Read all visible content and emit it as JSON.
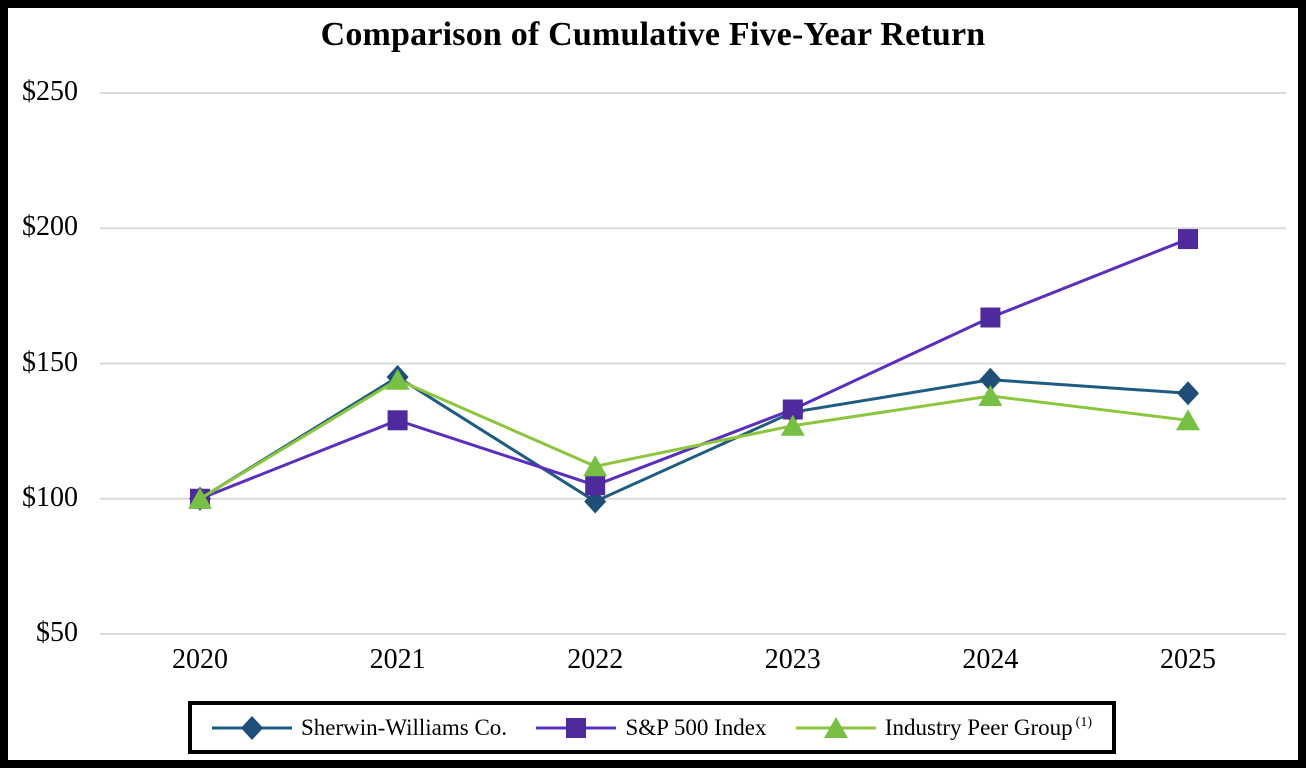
{
  "figure": {
    "kind": "performance-graph"
  },
  "chart_data": {
    "type": "line",
    "title": "Comparison of Cumulative Five-Year Return",
    "categories": [
      "2020",
      "2021",
      "2022",
      "2023",
      "2024",
      "2025"
    ],
    "y_ticks": [
      {
        "label": "$250",
        "value": 250
      },
      {
        "label": "$200",
        "value": 200
      },
      {
        "label": "$150",
        "value": 150
      },
      {
        "label": "$100",
        "value": 100
      },
      {
        "label": "$50",
        "value": 50
      }
    ],
    "ylim": [
      50,
      250
    ],
    "grid": "horizontal",
    "gridline_color": "#DBDBDB",
    "legend_position": "bottom-boxed",
    "series": [
      {
        "name": "Sherwin-Williams Co.",
        "superscript": "",
        "marker": "diamond",
        "line_color": "#1E5C83",
        "marker_color": "#1F4E79",
        "values": [
          100,
          145,
          99,
          132,
          144,
          139
        ]
      },
      {
        "name": "S&P 500 Index",
        "superscript": "",
        "marker": "square",
        "line_color": "#5A2EBE",
        "marker_color": "#4F2A9C",
        "values": [
          100,
          129,
          105,
          133,
          167,
          196
        ]
      },
      {
        "name": "Industry Peer Group",
        "superscript": "(1)",
        "marker": "triangle",
        "line_color": "#8CC63F",
        "marker_color": "#77C043",
        "values": [
          100,
          144,
          112,
          127,
          138,
          129
        ]
      }
    ]
  }
}
